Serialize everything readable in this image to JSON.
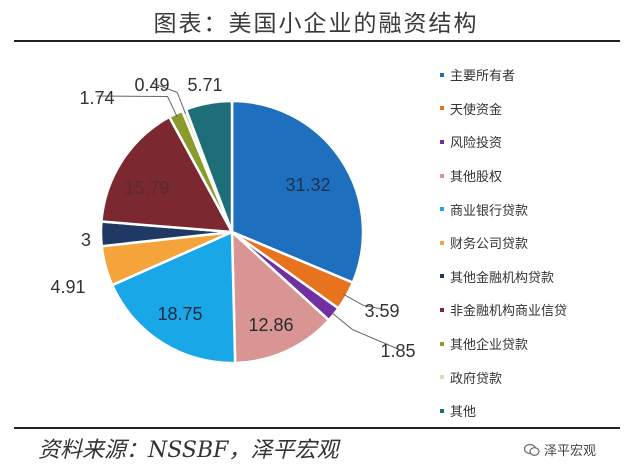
{
  "title": "图表：美国小企业的融资结构",
  "source": "资料来源：NSSBF，泽平宏观",
  "watermark": "泽平宏观",
  "chart_data": {
    "type": "pie",
    "title": "图表：美国小企业的融资结构",
    "labels": [
      "主要所有者",
      "天使资金",
      "风险投资",
      "其他股权",
      "商业银行贷款",
      "财务公司贷款",
      "其他金融机构贷款",
      "非金融机构商业信贷",
      "其他企业贷款",
      "政府贷款",
      "其他"
    ],
    "values": [
      31.32,
      3.59,
      1.85,
      12.86,
      18.75,
      4.91,
      3,
      15.79,
      1.74,
      0.49,
      5.71
    ],
    "data_labels": [
      "31.32",
      "3.59",
      "1.85",
      "12.86",
      "18.75",
      "4.91",
      "3",
      "15.79",
      "1.74",
      "0.49",
      "5.71"
    ],
    "colors": [
      "#1f6fbf",
      "#e8731f",
      "#7030a0",
      "#d99594",
      "#1aa7e8",
      "#f4a43a",
      "#203864",
      "#7b2830",
      "#8a9a2c",
      "#dbe0a8",
      "#1e6e7a"
    ],
    "legend_position": "right"
  }
}
